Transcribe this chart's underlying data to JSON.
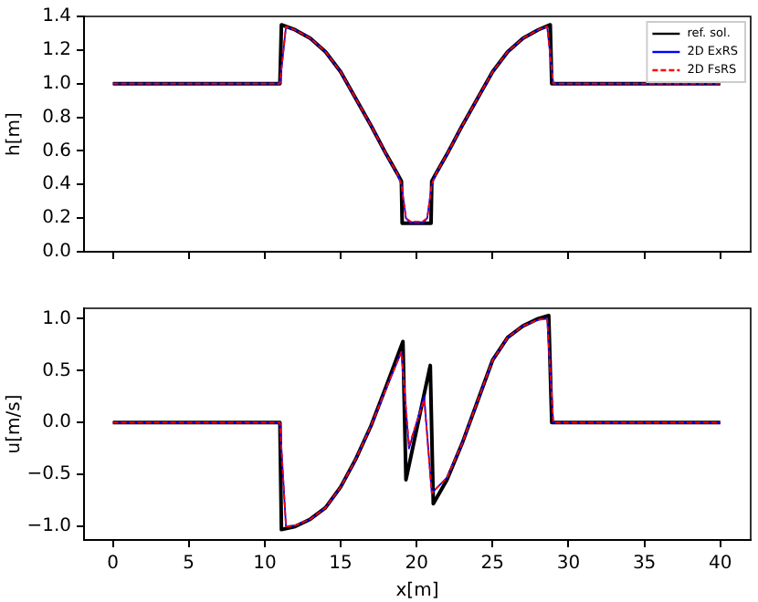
{
  "chart_data": [
    {
      "type": "line",
      "ylabel": "h[m]",
      "xlim": [
        -1.9,
        42
      ],
      "xticks": [
        0,
        5,
        10,
        15,
        20,
        25,
        30,
        35,
        40
      ],
      "ylim": [
        0,
        1.4
      ],
      "yticks": [
        {
          "value": 0,
          "label": "0.0"
        },
        0.2,
        0.4,
        0.6,
        0.8,
        {
          "value": 1,
          "label": "1.0"
        },
        1.2,
        1.4
      ],
      "tick_labels": "y",
      "grid": false,
      "legend": "top right",
      "marker": "none",
      "series": [
        {
          "name": "ref. sol.",
          "color": "#000000",
          "line_style": "solid",
          "x": [
            0,
            11.0,
            11.1,
            12,
            13,
            14,
            15,
            16,
            17,
            18,
            18.7,
            19.0,
            19.05,
            20.95,
            21.0,
            21.3,
            22,
            23,
            24,
            25,
            26,
            27,
            28,
            28.8,
            28.9,
            40
          ],
          "values": [
            1,
            1,
            1.35,
            1.32,
            1.27,
            1.19,
            1.07,
            0.91,
            0.75,
            0.58,
            0.47,
            0.42,
            0.17,
            0.17,
            0.42,
            0.47,
            0.58,
            0.75,
            0.91,
            1.07,
            1.19,
            1.27,
            1.32,
            1.35,
            1,
            1
          ]
        },
        {
          "name": "2D ExRS",
          "color": "#0000ff",
          "line_style": "solid",
          "x": [
            0,
            11.0,
            11.4,
            12,
            13,
            14,
            15,
            16,
            17,
            18,
            18.7,
            19.0,
            19.3,
            19.6,
            20.4,
            20.7,
            21.0,
            21.3,
            22,
            23,
            24,
            25,
            26,
            27,
            28,
            28.6,
            29.0,
            40
          ],
          "values": [
            1,
            1,
            1.34,
            1.32,
            1.27,
            1.19,
            1.07,
            0.91,
            0.75,
            0.58,
            0.47,
            0.4,
            0.2,
            0.17,
            0.17,
            0.2,
            0.4,
            0.47,
            0.58,
            0.75,
            0.91,
            1.07,
            1.19,
            1.27,
            1.32,
            1.34,
            1,
            1
          ]
        },
        {
          "name": "2D FsRS",
          "color": "#ff0000",
          "line_style": "dashed",
          "x": [
            0,
            11.0,
            11.4,
            12,
            13,
            14,
            15,
            16,
            17,
            18,
            18.7,
            19.0,
            19.3,
            19.6,
            20.4,
            20.7,
            21.0,
            21.3,
            22,
            23,
            24,
            25,
            26,
            27,
            28,
            28.6,
            29.0,
            40
          ],
          "values": [
            1,
            1,
            1.34,
            1.32,
            1.27,
            1.19,
            1.07,
            0.91,
            0.75,
            0.58,
            0.47,
            0.4,
            0.2,
            0.18,
            0.18,
            0.2,
            0.4,
            0.47,
            0.58,
            0.75,
            0.91,
            1.07,
            1.19,
            1.27,
            1.32,
            1.34,
            1,
            1
          ]
        }
      ]
    },
    {
      "type": "line",
      "xlabel": "x[m]",
      "ylabel": "u[m/s]",
      "xlim": [
        -1.9,
        42
      ],
      "xticks": [
        0,
        5,
        10,
        15,
        20,
        25,
        30,
        35,
        40
      ],
      "ylim": [
        -1.13,
        1.1
      ],
      "yticks": [
        {
          "value": -1,
          "label": "−1.0"
        },
        {
          "value": -0.5,
          "label": "−0.5"
        },
        {
          "value": 0,
          "label": "0.0"
        },
        0.5,
        {
          "value": 1,
          "label": "1.0"
        }
      ],
      "grid": false,
      "marker": "none",
      "series": [
        {
          "color": "#000000",
          "line_style": "solid",
          "x": [
            0,
            11.0,
            11.1,
            12,
            13,
            14,
            15,
            16,
            17,
            18,
            19.1,
            19.3,
            20.9,
            21.1,
            22,
            23,
            24,
            25,
            26,
            27,
            28,
            28.7,
            28.9,
            40
          ],
          "values": [
            0,
            0,
            -1.03,
            -1.0,
            -0.93,
            -0.82,
            -0.62,
            -0.35,
            -0.03,
            0.35,
            0.78,
            -0.55,
            0.55,
            -0.78,
            -0.55,
            -0.2,
            0.2,
            0.6,
            0.82,
            0.93,
            1.0,
            1.03,
            0,
            0
          ]
        },
        {
          "color": "#0000ff",
          "line_style": "solid",
          "x": [
            0,
            11.0,
            11.4,
            12,
            13,
            14,
            15,
            16,
            17,
            18,
            19.0,
            19.5,
            20.5,
            21.0,
            22,
            23,
            24,
            25,
            26,
            27,
            28,
            28.6,
            29.0,
            40
          ],
          "values": [
            0,
            0,
            -1.0,
            -0.99,
            -0.93,
            -0.82,
            -0.62,
            -0.35,
            -0.03,
            0.33,
            0.68,
            -0.25,
            0.25,
            -0.68,
            -0.53,
            -0.2,
            0.2,
            0.6,
            0.82,
            0.93,
            0.99,
            1.0,
            0,
            0
          ]
        },
        {
          "color": "#ff0000",
          "line_style": "dashed",
          "x": [
            0,
            11.0,
            11.4,
            12,
            13,
            14,
            15,
            16,
            17,
            18,
            19.0,
            19.5,
            20.5,
            21.0,
            22,
            23,
            24,
            25,
            26,
            27,
            28,
            28.6,
            29.0,
            40
          ],
          "values": [
            0,
            0,
            -1.0,
            -0.99,
            -0.93,
            -0.82,
            -0.62,
            -0.35,
            -0.03,
            0.33,
            0.68,
            -0.22,
            0.22,
            -0.68,
            -0.53,
            -0.2,
            0.2,
            0.6,
            0.82,
            0.93,
            0.99,
            1.0,
            0,
            0
          ]
        }
      ]
    }
  ]
}
